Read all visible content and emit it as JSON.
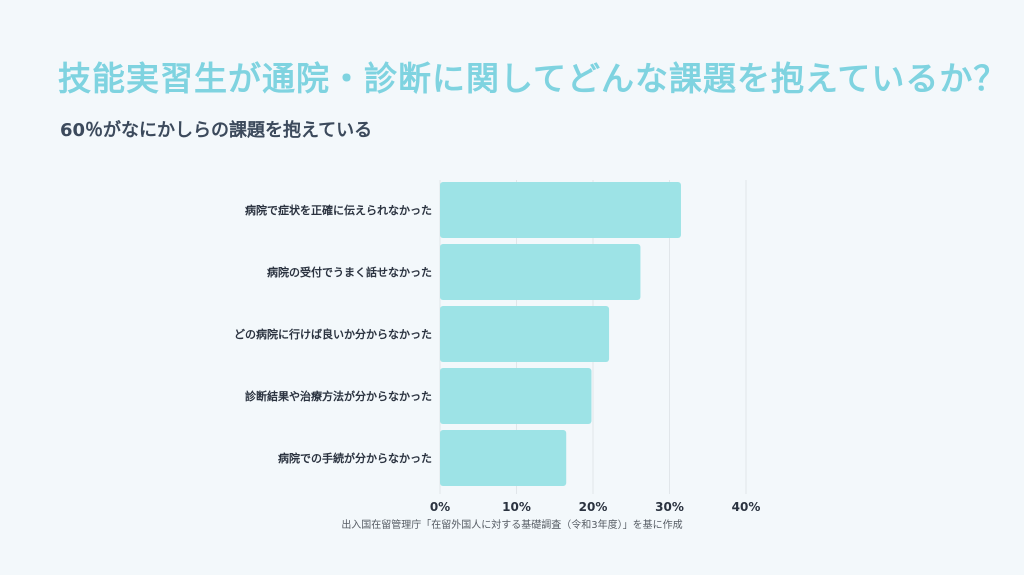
{
  "title": "技能実習生が通院・診断に関してどんな課題を抱えているか？",
  "subtitle": "60％がなにかしらの課題を抱えている",
  "source": "出入国在留管理庁「在留外国人に対する基礎調査（令和3年度）」を基に作成",
  "colors": {
    "bar": "#9de3e6",
    "title": "#7fd3e0",
    "grid": "#e1e6ea"
  },
  "chart_data": {
    "type": "bar",
    "orientation": "horizontal",
    "categories": [
      "病院で症状を正確に伝えられなかった",
      "病院の受付でうまく話せなかった",
      "どの病院に行けば良いか分からなかった",
      "診断結果や治療方法が分からなかった",
      "病院での手続が分からなかった"
    ],
    "values": [
      31.5,
      26.2,
      22.1,
      19.8,
      16.5
    ],
    "xlim": [
      0,
      40
    ],
    "xticks": [
      "0%",
      "10%",
      "20%",
      "30%",
      "40%"
    ],
    "grid": true
  }
}
